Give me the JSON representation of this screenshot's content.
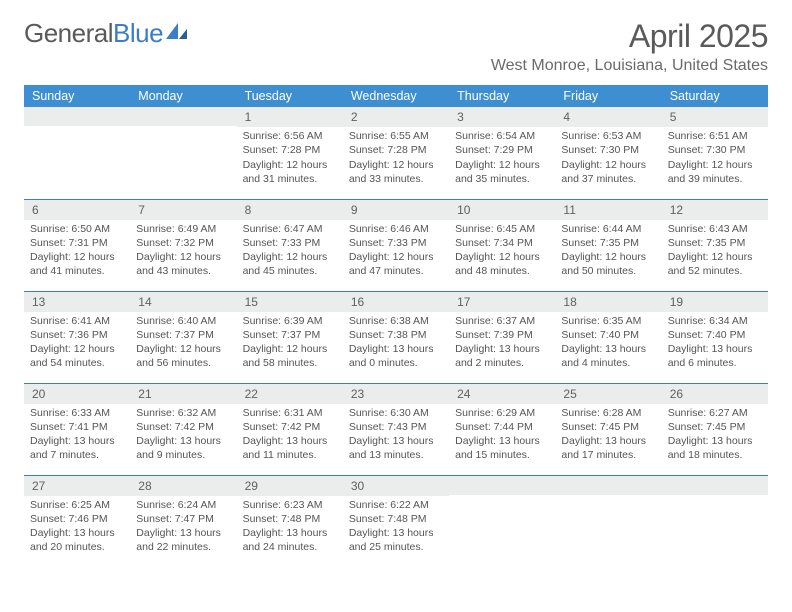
{
  "brand": {
    "part1": "General",
    "part2": "Blue"
  },
  "title": "April 2025",
  "location": "West Monroe, Louisiana, United States",
  "colors": {
    "header_bg": "#3d8fd1",
    "header_text": "#ffffff",
    "daynum_bg": "#ebecec",
    "rule": "#3d7cc9",
    "body_text": "#555555",
    "brand_grey": "#5a5a5a",
    "brand_blue": "#3d7cc9"
  },
  "weekdays": [
    "Sunday",
    "Monday",
    "Tuesday",
    "Wednesday",
    "Thursday",
    "Friday",
    "Saturday"
  ],
  "weeks": [
    [
      {
        "n": "",
        "lines": []
      },
      {
        "n": "",
        "lines": []
      },
      {
        "n": "1",
        "lines": [
          "Sunrise: 6:56 AM",
          "Sunset: 7:28 PM",
          "Daylight: 12 hours and 31 minutes."
        ]
      },
      {
        "n": "2",
        "lines": [
          "Sunrise: 6:55 AM",
          "Sunset: 7:28 PM",
          "Daylight: 12 hours and 33 minutes."
        ]
      },
      {
        "n": "3",
        "lines": [
          "Sunrise: 6:54 AM",
          "Sunset: 7:29 PM",
          "Daylight: 12 hours and 35 minutes."
        ]
      },
      {
        "n": "4",
        "lines": [
          "Sunrise: 6:53 AM",
          "Sunset: 7:30 PM",
          "Daylight: 12 hours and 37 minutes."
        ]
      },
      {
        "n": "5",
        "lines": [
          "Sunrise: 6:51 AM",
          "Sunset: 7:30 PM",
          "Daylight: 12 hours and 39 minutes."
        ]
      }
    ],
    [
      {
        "n": "6",
        "lines": [
          "Sunrise: 6:50 AM",
          "Sunset: 7:31 PM",
          "Daylight: 12 hours and 41 minutes."
        ]
      },
      {
        "n": "7",
        "lines": [
          "Sunrise: 6:49 AM",
          "Sunset: 7:32 PM",
          "Daylight: 12 hours and 43 minutes."
        ]
      },
      {
        "n": "8",
        "lines": [
          "Sunrise: 6:47 AM",
          "Sunset: 7:33 PM",
          "Daylight: 12 hours and 45 minutes."
        ]
      },
      {
        "n": "9",
        "lines": [
          "Sunrise: 6:46 AM",
          "Sunset: 7:33 PM",
          "Daylight: 12 hours and 47 minutes."
        ]
      },
      {
        "n": "10",
        "lines": [
          "Sunrise: 6:45 AM",
          "Sunset: 7:34 PM",
          "Daylight: 12 hours and 48 minutes."
        ]
      },
      {
        "n": "11",
        "lines": [
          "Sunrise: 6:44 AM",
          "Sunset: 7:35 PM",
          "Daylight: 12 hours and 50 minutes."
        ]
      },
      {
        "n": "12",
        "lines": [
          "Sunrise: 6:43 AM",
          "Sunset: 7:35 PM",
          "Daylight: 12 hours and 52 minutes."
        ]
      }
    ],
    [
      {
        "n": "13",
        "lines": [
          "Sunrise: 6:41 AM",
          "Sunset: 7:36 PM",
          "Daylight: 12 hours and 54 minutes."
        ]
      },
      {
        "n": "14",
        "lines": [
          "Sunrise: 6:40 AM",
          "Sunset: 7:37 PM",
          "Daylight: 12 hours and 56 minutes."
        ]
      },
      {
        "n": "15",
        "lines": [
          "Sunrise: 6:39 AM",
          "Sunset: 7:37 PM",
          "Daylight: 12 hours and 58 minutes."
        ]
      },
      {
        "n": "16",
        "lines": [
          "Sunrise: 6:38 AM",
          "Sunset: 7:38 PM",
          "Daylight: 13 hours and 0 minutes."
        ]
      },
      {
        "n": "17",
        "lines": [
          "Sunrise: 6:37 AM",
          "Sunset: 7:39 PM",
          "Daylight: 13 hours and 2 minutes."
        ]
      },
      {
        "n": "18",
        "lines": [
          "Sunrise: 6:35 AM",
          "Sunset: 7:40 PM",
          "Daylight: 13 hours and 4 minutes."
        ]
      },
      {
        "n": "19",
        "lines": [
          "Sunrise: 6:34 AM",
          "Sunset: 7:40 PM",
          "Daylight: 13 hours and 6 minutes."
        ]
      }
    ],
    [
      {
        "n": "20",
        "lines": [
          "Sunrise: 6:33 AM",
          "Sunset: 7:41 PM",
          "Daylight: 13 hours and 7 minutes."
        ]
      },
      {
        "n": "21",
        "lines": [
          "Sunrise: 6:32 AM",
          "Sunset: 7:42 PM",
          "Daylight: 13 hours and 9 minutes."
        ]
      },
      {
        "n": "22",
        "lines": [
          "Sunrise: 6:31 AM",
          "Sunset: 7:42 PM",
          "Daylight: 13 hours and 11 minutes."
        ]
      },
      {
        "n": "23",
        "lines": [
          "Sunrise: 6:30 AM",
          "Sunset: 7:43 PM",
          "Daylight: 13 hours and 13 minutes."
        ]
      },
      {
        "n": "24",
        "lines": [
          "Sunrise: 6:29 AM",
          "Sunset: 7:44 PM",
          "Daylight: 13 hours and 15 minutes."
        ]
      },
      {
        "n": "25",
        "lines": [
          "Sunrise: 6:28 AM",
          "Sunset: 7:45 PM",
          "Daylight: 13 hours and 17 minutes."
        ]
      },
      {
        "n": "26",
        "lines": [
          "Sunrise: 6:27 AM",
          "Sunset: 7:45 PM",
          "Daylight: 13 hours and 18 minutes."
        ]
      }
    ],
    [
      {
        "n": "27",
        "lines": [
          "Sunrise: 6:25 AM",
          "Sunset: 7:46 PM",
          "Daylight: 13 hours and 20 minutes."
        ]
      },
      {
        "n": "28",
        "lines": [
          "Sunrise: 6:24 AM",
          "Sunset: 7:47 PM",
          "Daylight: 13 hours and 22 minutes."
        ]
      },
      {
        "n": "29",
        "lines": [
          "Sunrise: 6:23 AM",
          "Sunset: 7:48 PM",
          "Daylight: 13 hours and 24 minutes."
        ]
      },
      {
        "n": "30",
        "lines": [
          "Sunrise: 6:22 AM",
          "Sunset: 7:48 PM",
          "Daylight: 13 hours and 25 minutes."
        ]
      },
      {
        "n": "",
        "lines": []
      },
      {
        "n": "",
        "lines": []
      },
      {
        "n": "",
        "lines": []
      }
    ]
  ]
}
